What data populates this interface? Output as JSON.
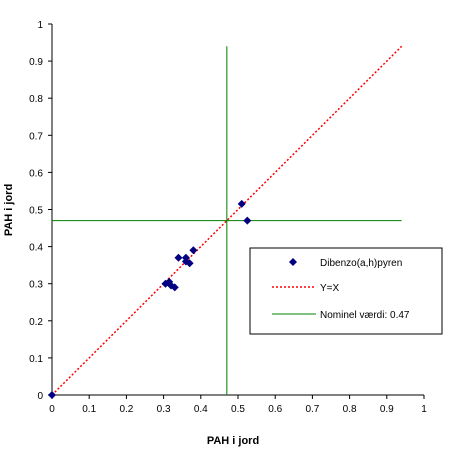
{
  "chart_data": {
    "type": "scatter",
    "xlabel": "PAH i jord",
    "ylabel": "PAH i jord",
    "xlim": [
      0,
      1
    ],
    "ylim": [
      0,
      1
    ],
    "x_ticks": [
      "0",
      "0.1",
      "0.2",
      "0.3",
      "0.4",
      "0.5",
      "0.6",
      "0.7",
      "0.8",
      "0.9",
      "1"
    ],
    "y_ticks": [
      "0",
      "0.1",
      "0.2",
      "0.3",
      "0.4",
      "0.5",
      "0.6",
      "0.7",
      "0.8",
      "0.9",
      "1"
    ],
    "grid": false,
    "legend_position": "right",
    "series": [
      {
        "name": "Dibenzo(a,h)pyren",
        "kind": "points",
        "color": "#000080",
        "marker": "diamond",
        "points": [
          {
            "x": 0.0,
            "y": 0.0
          },
          {
            "x": 0.305,
            "y": 0.3
          },
          {
            "x": 0.315,
            "y": 0.305
          },
          {
            "x": 0.32,
            "y": 0.295
          },
          {
            "x": 0.33,
            "y": 0.29
          },
          {
            "x": 0.34,
            "y": 0.37
          },
          {
            "x": 0.36,
            "y": 0.37
          },
          {
            "x": 0.36,
            "y": 0.36
          },
          {
            "x": 0.37,
            "y": 0.355
          },
          {
            "x": 0.38,
            "y": 0.39
          },
          {
            "x": 0.51,
            "y": 0.515
          },
          {
            "x": 0.525,
            "y": 0.47
          }
        ]
      },
      {
        "name": "Y=X",
        "kind": "line",
        "color": "#ff0000",
        "style": "dotted",
        "x": [
          0,
          0.94
        ],
        "y": [
          0,
          0.94
        ]
      },
      {
        "name": "Nominel værdi:  0.47",
        "kind": "reference-lines",
        "color": "#008000",
        "value": 0.47,
        "h_x_range": [
          0,
          0.94
        ],
        "v_y_range": [
          0,
          0.94
        ]
      }
    ]
  }
}
